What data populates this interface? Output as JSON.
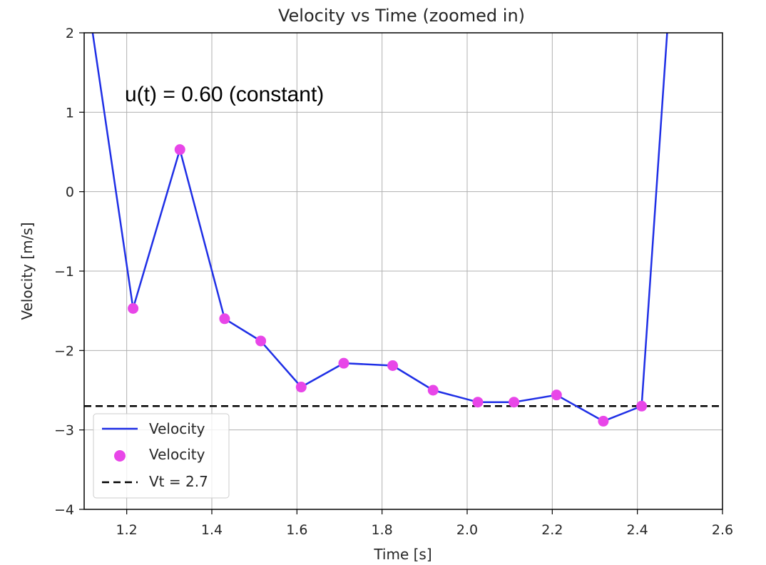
{
  "chart_data": {
    "type": "line",
    "title": "Velocity vs Time (zoomed in)",
    "xlabel": "Time [s]",
    "ylabel": "Velocity [m/s]",
    "xlim": [
      1.1,
      2.6
    ],
    "ylim": [
      -4,
      2
    ],
    "xticks": [
      1.2,
      1.4,
      1.6,
      1.8,
      2.0,
      2.2,
      2.4,
      2.6
    ],
    "xtick_labels": [
      "1.2",
      "1.4",
      "1.6",
      "1.8",
      "2.0",
      "2.2",
      "2.4",
      "2.6"
    ],
    "yticks": [
      2,
      1,
      0,
      -1,
      -2,
      -3,
      -4
    ],
    "ytick_labels": [
      "2",
      "1",
      "0",
      "−1",
      "−2",
      "−3",
      "−4"
    ],
    "grid": true,
    "legend_position": "lower-left",
    "annotation": "u(t) = 0.60 (constant)",
    "series": [
      {
        "name": "Velocity",
        "kind": "line",
        "color": "#1f2fe6",
        "x": [
          1.12,
          1.215,
          1.325,
          1.43,
          1.515,
          1.61,
          1.71,
          1.825,
          1.92,
          2.025,
          2.11,
          2.21,
          2.32,
          2.41,
          2.47
        ],
        "y": [
          2.0,
          -1.47,
          0.53,
          -1.6,
          -1.88,
          -2.46,
          -2.16,
          -2.19,
          -2.5,
          -2.65,
          -2.65,
          -2.56,
          -2.89,
          -2.7,
          2.0
        ]
      },
      {
        "name": "Velocity",
        "kind": "scatter",
        "color": "#e846e8",
        "x": [
          1.215,
          1.325,
          1.43,
          1.515,
          1.61,
          1.71,
          1.825,
          1.92,
          2.025,
          2.11,
          2.21,
          2.32,
          2.41
        ],
        "y": [
          -1.47,
          0.53,
          -1.6,
          -1.88,
          -2.46,
          -2.16,
          -2.19,
          -2.5,
          -2.65,
          -2.65,
          -2.56,
          -2.89,
          -2.7
        ]
      },
      {
        "name": "Vt = 2.7",
        "kind": "hline",
        "color": "#000000",
        "y": -2.7
      }
    ]
  }
}
